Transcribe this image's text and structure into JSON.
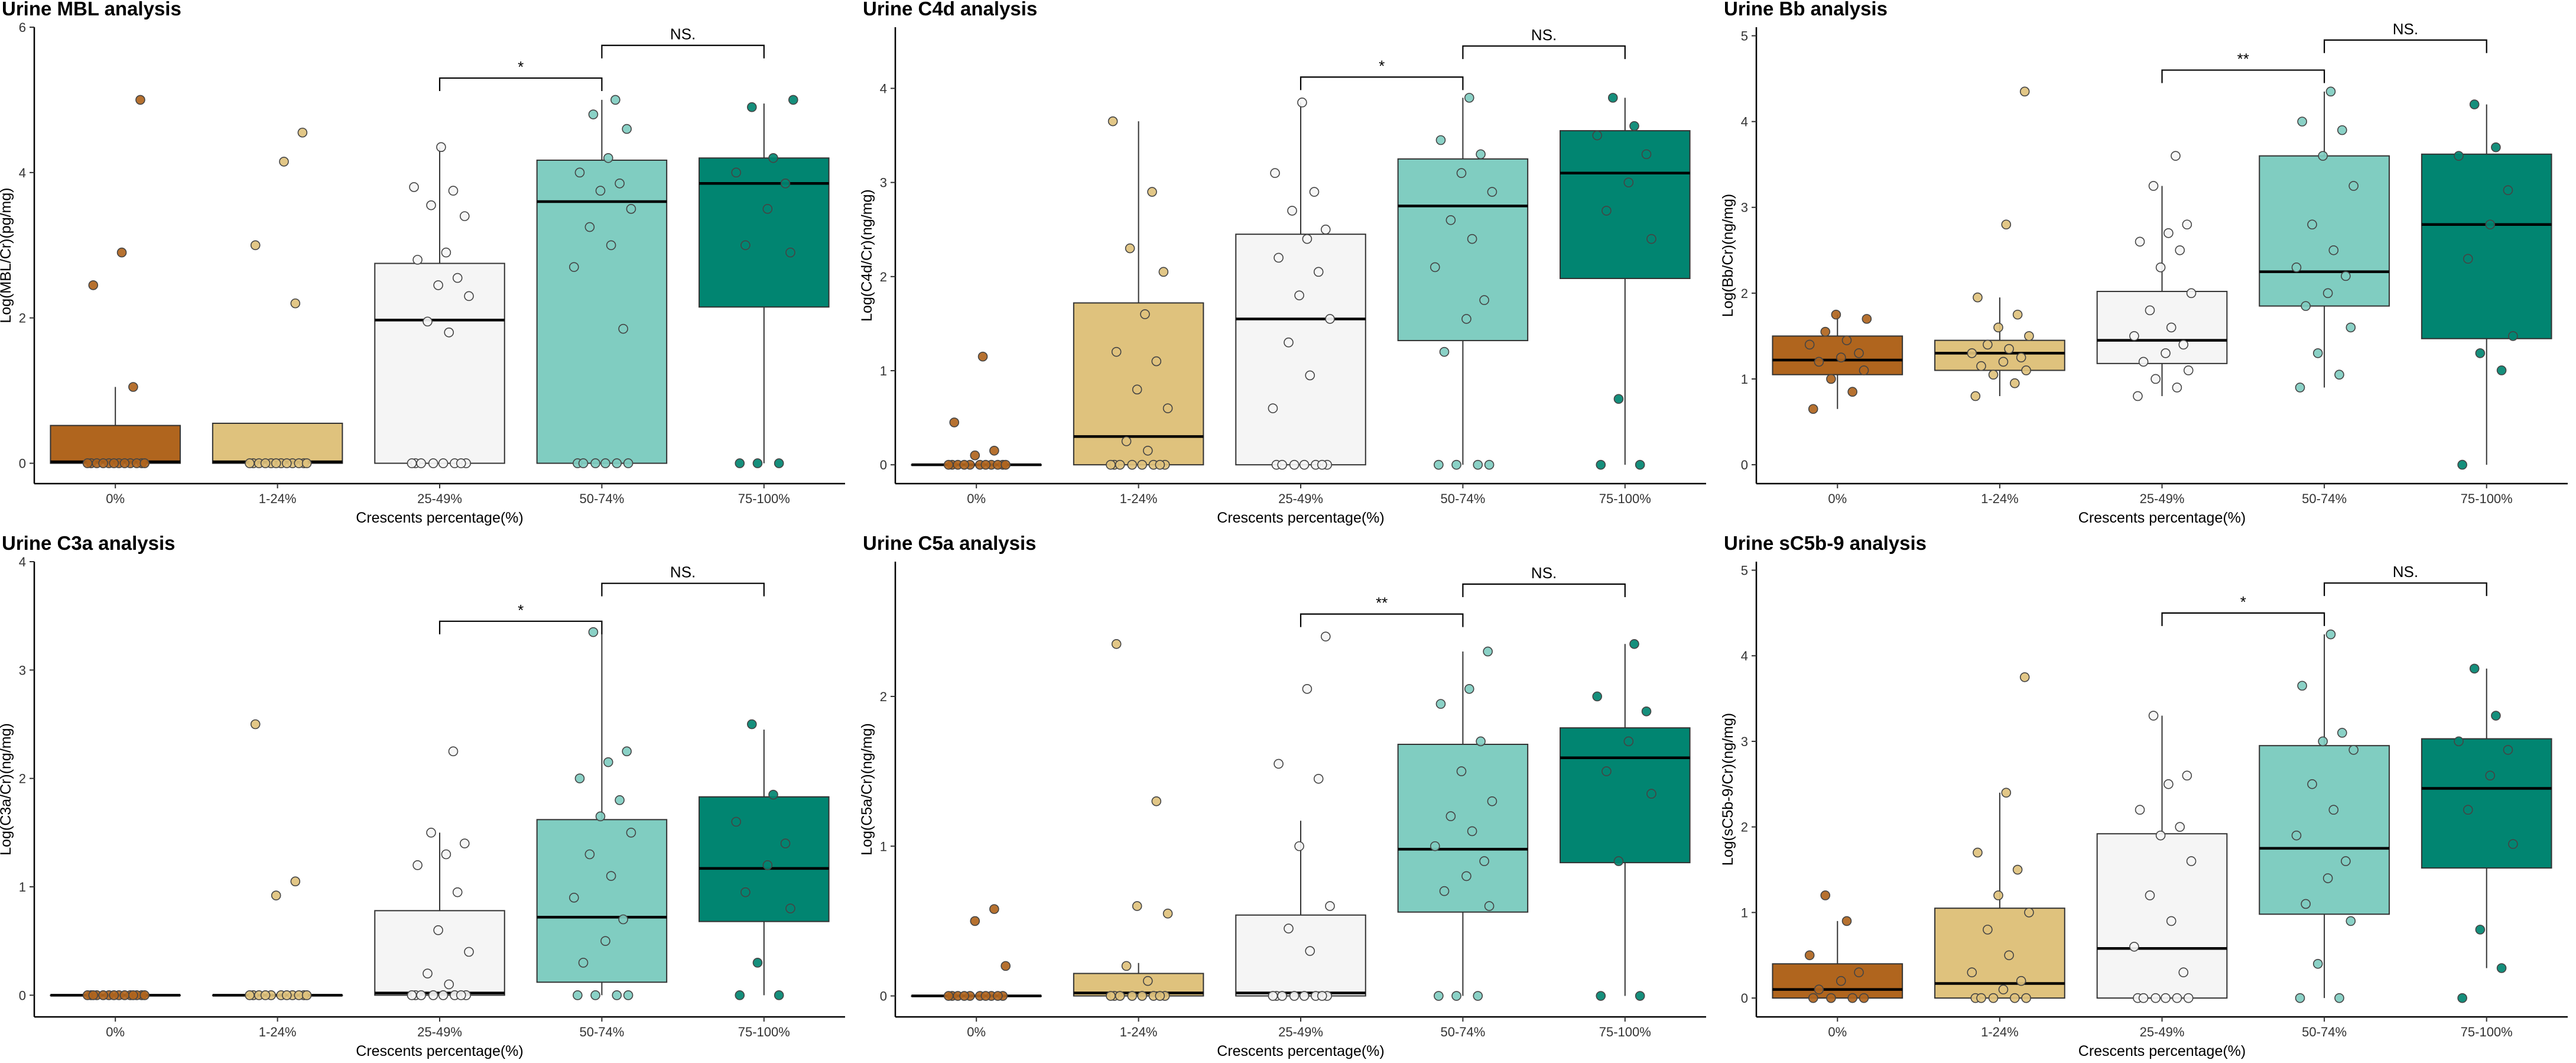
{
  "chart_data": [
    {
      "type": "box",
      "title": "Urine MBL analysis",
      "xlabel": "Crescents percentage(%)",
      "ylabel": "Log(MBL/Cr)(pg/mg)",
      "categories": [
        "0%",
        "1-24%",
        "25-49%",
        "50-74%",
        "75-100%"
      ],
      "colors": [
        "#B0651E",
        "#DFC27D",
        "#F5F5F5",
        "#80CDC1",
        "#018571"
      ],
      "ylim": [
        -0.28,
        6.0
      ],
      "yticks": [
        0,
        2,
        4,
        6
      ],
      "boxes": [
        {
          "q1": 0,
          "median": 0.02,
          "q3": 0.52,
          "wlow": 0,
          "whigh": 1.05
        },
        {
          "q1": 0,
          "median": 0.02,
          "q3": 0.55,
          "wlow": 0,
          "whigh": 0.55
        },
        {
          "q1": 0,
          "median": 1.97,
          "q3": 2.75,
          "wlow": 0,
          "whigh": 4.35
        },
        {
          "q1": 0,
          "median": 3.6,
          "q3": 4.17,
          "wlow": 0,
          "whigh": 5.0
        },
        {
          "q1": 2.15,
          "median": 3.85,
          "q3": 4.2,
          "wlow": 0,
          "whigh": 4.95
        }
      ],
      "points": [
        [
          0,
          0,
          0,
          0,
          0,
          0,
          0,
          0,
          0,
          0,
          0,
          0,
          1.05,
          2.45,
          2.9,
          5.0
        ],
        [
          0,
          0,
          0,
          0,
          0,
          0,
          0,
          0,
          0,
          0,
          0,
          0,
          2.2,
          3.0,
          4.15,
          4.55
        ],
        [
          0,
          0,
          0,
          0,
          0,
          0,
          0,
          0,
          1.8,
          1.95,
          2.3,
          2.45,
          2.55,
          2.8,
          2.9,
          3.4,
          3.55,
          3.75,
          3.8,
          4.35
        ],
        [
          0,
          0,
          0,
          0,
          0,
          0,
          1.85,
          2.7,
          3.0,
          3.25,
          3.5,
          3.75,
          3.85,
          4.0,
          4.2,
          4.6,
          4.8,
          5.0
        ],
        [
          0,
          0,
          0,
          2.9,
          3.0,
          3.5,
          3.85,
          4.0,
          4.2,
          4.9,
          5.0
        ]
      ],
      "brackets": [
        {
          "from": 2,
          "to": 3,
          "label": "*",
          "y": 5.3
        },
        {
          "from": 3,
          "to": 4,
          "label": "NS.",
          "y": 5.75
        }
      ]
    },
    {
      "type": "box",
      "title": "Urine C4d analysis",
      "xlabel": "Crescents percentage(%)",
      "ylabel": "Log(C4d/Cr)(ng/mg)",
      "categories": [
        "0%",
        "1-24%",
        "25-49%",
        "50-74%",
        "75-100%"
      ],
      "colors": [
        "#B0651E",
        "#DFC27D",
        "#F5F5F5",
        "#80CDC1",
        "#018571"
      ],
      "ylim": [
        -0.2,
        4.65
      ],
      "yticks": [
        0,
        1,
        2,
        3,
        4
      ],
      "boxes": [
        {
          "q1": 0,
          "median": 0,
          "q3": 0,
          "wlow": 0,
          "whigh": 0
        },
        {
          "q1": 0,
          "median": 0.3,
          "q3": 1.72,
          "wlow": 0,
          "whigh": 3.65
        },
        {
          "q1": 0,
          "median": 1.55,
          "q3": 2.45,
          "wlow": 0,
          "whigh": 3.85
        },
        {
          "q1": 1.32,
          "median": 2.75,
          "q3": 3.25,
          "wlow": 0,
          "whigh": 3.9
        },
        {
          "q1": 1.98,
          "median": 3.1,
          "q3": 3.55,
          "wlow": 0,
          "whigh": 3.9
        }
      ],
      "points": [
        [
          0,
          0,
          0,
          0,
          0,
          0,
          0,
          0,
          0,
          0,
          0,
          0.1,
          0.15,
          0.45,
          1.15
        ],
        [
          0,
          0,
          0,
          0,
          0,
          0,
          0,
          0,
          0.15,
          0.25,
          0.6,
          0.8,
          1.1,
          1.2,
          1.6,
          2.05,
          2.3,
          2.9,
          3.65
        ],
        [
          0,
          0,
          0,
          0,
          0,
          0,
          0,
          0.6,
          0.95,
          1.3,
          1.55,
          1.8,
          2.05,
          2.2,
          2.4,
          2.5,
          2.7,
          2.9,
          3.1,
          3.85
        ],
        [
          0,
          0,
          0,
          0,
          1.2,
          1.55,
          1.75,
          2.1,
          2.4,
          2.6,
          2.9,
          3.1,
          3.3,
          3.45,
          3.9
        ],
        [
          0,
          0,
          0.7,
          2.4,
          2.7,
          3.0,
          3.3,
          3.5,
          3.6,
          3.9
        ]
      ],
      "brackets": [
        {
          "from": 2,
          "to": 3,
          "label": "*",
          "y": 4.12
        },
        {
          "from": 3,
          "to": 4,
          "label": "NS.",
          "y": 4.45
        }
      ]
    },
    {
      "type": "box",
      "title": "Urine Bb analysis",
      "xlabel": "Crescents percentage(%)",
      "ylabel": "Log(Bb/Cr)(ng/mg)",
      "categories": [
        "0%",
        "1-24%",
        "25-49%",
        "50-74%",
        "75-100%"
      ],
      "colors": [
        "#B0651E",
        "#DFC27D",
        "#F5F5F5",
        "#80CDC1",
        "#018571"
      ],
      "ylim": [
        -0.22,
        5.1
      ],
      "yticks": [
        0,
        1,
        2,
        3,
        4,
        5
      ],
      "boxes": [
        {
          "q1": 1.05,
          "median": 1.22,
          "q3": 1.5,
          "wlow": 0.65,
          "whigh": 1.75
        },
        {
          "q1": 1.1,
          "median": 1.3,
          "q3": 1.45,
          "wlow": 0.8,
          "whigh": 1.95
        },
        {
          "q1": 1.18,
          "median": 1.45,
          "q3": 2.02,
          "wlow": 0.8,
          "whigh": 3.25
        },
        {
          "q1": 1.85,
          "median": 2.25,
          "q3": 3.6,
          "wlow": 0.9,
          "whigh": 4.35
        },
        {
          "q1": 1.47,
          "median": 2.8,
          "q3": 3.62,
          "wlow": 0,
          "whigh": 4.2
        }
      ],
      "points": [
        [
          0.65,
          0.85,
          1.0,
          1.1,
          1.2,
          1.25,
          1.3,
          1.4,
          1.45,
          1.55,
          1.7,
          1.75
        ],
        [
          0.8,
          0.95,
          1.05,
          1.1,
          1.15,
          1.2,
          1.25,
          1.3,
          1.35,
          1.4,
          1.5,
          1.6,
          1.75,
          1.95,
          2.8,
          4.35
        ],
        [
          0.8,
          0.9,
          1.0,
          1.1,
          1.2,
          1.3,
          1.4,
          1.5,
          1.6,
          1.8,
          2.0,
          2.3,
          2.5,
          2.6,
          2.7,
          2.8,
          3.25,
          3.6
        ],
        [
          0.9,
          1.05,
          1.3,
          1.6,
          1.85,
          2.0,
          2.2,
          2.3,
          2.5,
          2.8,
          3.25,
          3.6,
          3.9,
          4.0,
          4.35
        ],
        [
          0,
          1.1,
          1.3,
          1.5,
          2.4,
          2.8,
          3.2,
          3.6,
          3.7,
          4.2
        ]
      ],
      "brackets": [
        {
          "from": 2,
          "to": 3,
          "label": "**",
          "y": 4.6
        },
        {
          "from": 3,
          "to": 4,
          "label": "NS.",
          "y": 4.95
        }
      ]
    },
    {
      "type": "box",
      "title": "Urine C3a analysis",
      "xlabel": "Crescents percentage(%)",
      "ylabel": "Log(C3a/Cr)(ng/mg)",
      "categories": [
        "0%",
        "1-24%",
        "25-49%",
        "50-74%",
        "75-100%"
      ],
      "colors": [
        "#B0651E",
        "#DFC27D",
        "#F5F5F5",
        "#80CDC1",
        "#018571"
      ],
      "ylim": [
        -0.2,
        4.0
      ],
      "yticks": [
        0,
        1,
        2,
        3,
        4
      ],
      "boxes": [
        {
          "q1": 0,
          "median": 0,
          "q3": 0,
          "wlow": 0,
          "whigh": 0
        },
        {
          "q1": 0,
          "median": 0,
          "q3": 0,
          "wlow": 0,
          "whigh": 0
        },
        {
          "q1": 0,
          "median": 0.02,
          "q3": 0.78,
          "wlow": 0,
          "whigh": 1.5
        },
        {
          "q1": 0.12,
          "median": 0.72,
          "q3": 1.62,
          "wlow": 0,
          "whigh": 3.35
        },
        {
          "q1": 0.68,
          "median": 1.17,
          "q3": 1.83,
          "wlow": 0,
          "whigh": 2.45
        }
      ],
      "points": [
        [
          0,
          0,
          0,
          0,
          0,
          0,
          0,
          0,
          0,
          0,
          0,
          0,
          0,
          0
        ],
        [
          0,
          0,
          0,
          0,
          0,
          0,
          0,
          0,
          0,
          0,
          0,
          0.92,
          1.05,
          2.5
        ],
        [
          0,
          0,
          0,
          0,
          0,
          0,
          0,
          0,
          0.1,
          0.2,
          0.4,
          0.6,
          0.95,
          1.2,
          1.3,
          1.4,
          1.5,
          2.25
        ],
        [
          0,
          0,
          0,
          0,
          0.3,
          0.5,
          0.7,
          0.9,
          1.1,
          1.3,
          1.5,
          1.65,
          1.8,
          2.0,
          2.15,
          2.25,
          3.35
        ],
        [
          0,
          0,
          0.3,
          0.8,
          0.95,
          1.2,
          1.4,
          1.6,
          1.85,
          2.5
        ]
      ],
      "brackets": [
        {
          "from": 2,
          "to": 3,
          "label": "*",
          "y": 3.45
        },
        {
          "from": 3,
          "to": 4,
          "label": "NS.",
          "y": 3.8
        }
      ]
    },
    {
      "type": "box",
      "title": "Urine C5a analysis",
      "xlabel": "Crescents percentage(%)",
      "ylabel": "Log(C5a/Cr)(ng/mg)",
      "categories": [
        "0%",
        "1-24%",
        "25-49%",
        "50-74%",
        "75-100%"
      ],
      "colors": [
        "#B0651E",
        "#DFC27D",
        "#F5F5F5",
        "#80CDC1",
        "#018571"
      ],
      "ylim": [
        -0.14,
        2.9
      ],
      "yticks": [
        0,
        1,
        2
      ],
      "boxes": [
        {
          "q1": 0,
          "median": 0,
          "q3": 0,
          "wlow": 0,
          "whigh": 0
        },
        {
          "q1": 0,
          "median": 0.02,
          "q3": 0.15,
          "wlow": 0,
          "whigh": 0.22
        },
        {
          "q1": 0,
          "median": 0.02,
          "q3": 0.54,
          "wlow": 0,
          "whigh": 1.17
        },
        {
          "q1": 0.56,
          "median": 0.98,
          "q3": 1.68,
          "wlow": 0,
          "whigh": 2.3
        },
        {
          "q1": 0.89,
          "median": 1.59,
          "q3": 1.79,
          "wlow": 0,
          "whigh": 2.35
        }
      ],
      "points": [
        [
          0,
          0,
          0,
          0,
          0,
          0,
          0,
          0,
          0,
          0,
          0.2,
          0.5,
          0.58
        ],
        [
          0,
          0,
          0,
          0,
          0,
          0,
          0,
          0,
          0.1,
          0.2,
          0.55,
          0.6,
          1.3,
          2.35
        ],
        [
          0,
          0,
          0,
          0,
          0,
          0,
          0,
          0,
          0.3,
          0.45,
          0.6,
          1.0,
          1.45,
          1.55,
          2.05,
          2.4
        ],
        [
          0,
          0,
          0,
          0.6,
          0.7,
          0.8,
          0.9,
          1.0,
          1.1,
          1.2,
          1.3,
          1.5,
          1.7,
          1.95,
          2.05,
          2.3
        ],
        [
          0,
          0,
          0.9,
          1.35,
          1.5,
          1.7,
          1.9,
          2.0,
          2.35
        ]
      ],
      "brackets": [
        {
          "from": 2,
          "to": 3,
          "label": "**",
          "y": 2.55
        },
        {
          "from": 3,
          "to": 4,
          "label": "NS.",
          "y": 2.75
        }
      ]
    },
    {
      "type": "box",
      "title": "Urine sC5b-9 analysis",
      "xlabel": "Crescents percentage(%)",
      "ylabel": "Log(sC5b-9/Cr)(ng/mg)",
      "categories": [
        "0%",
        "1-24%",
        "25-49%",
        "50-74%",
        "75-100%"
      ],
      "colors": [
        "#B0651E",
        "#DFC27D",
        "#F5F5F5",
        "#80CDC1",
        "#018571"
      ],
      "ylim": [
        -0.22,
        5.1
      ],
      "yticks": [
        0,
        1,
        2,
        3,
        4,
        5
      ],
      "boxes": [
        {
          "q1": 0,
          "median": 0.1,
          "q3": 0.4,
          "wlow": 0,
          "whigh": 0.9
        },
        {
          "q1": 0,
          "median": 0.17,
          "q3": 1.05,
          "wlow": 0,
          "whigh": 2.4
        },
        {
          "q1": 0,
          "median": 0.58,
          "q3": 1.92,
          "wlow": 0,
          "whigh": 3.3
        },
        {
          "q1": 0.98,
          "median": 1.75,
          "q3": 2.95,
          "wlow": 0,
          "whigh": 4.25
        },
        {
          "q1": 1.52,
          "median": 2.45,
          "q3": 3.03,
          "wlow": 0.35,
          "whigh": 3.85
        }
      ],
      "points": [
        [
          0,
          0,
          0,
          0,
          0.1,
          0.2,
          0.3,
          0.5,
          0.9,
          1.2
        ],
        [
          0,
          0,
          0,
          0,
          0,
          0.1,
          0.2,
          0.3,
          0.5,
          0.8,
          1.0,
          1.2,
          1.5,
          1.7,
          2.4,
          3.75
        ],
        [
          0,
          0,
          0,
          0,
          0,
          0,
          0.3,
          0.6,
          0.9,
          1.2,
          1.6,
          1.9,
          2.0,
          2.2,
          2.5,
          2.6,
          3.3
        ],
        [
          0,
          0,
          0.4,
          0.9,
          1.1,
          1.4,
          1.6,
          1.9,
          2.2,
          2.5,
          2.9,
          3.0,
          3.1,
          3.65,
          4.25
        ],
        [
          0,
          0.35,
          0.8,
          1.8,
          2.2,
          2.6,
          2.9,
          3.0,
          3.3,
          3.85
        ]
      ],
      "brackets": [
        {
          "from": 2,
          "to": 3,
          "label": "*",
          "y": 4.5
        },
        {
          "from": 3,
          "to": 4,
          "label": "NS.",
          "y": 4.85
        }
      ]
    }
  ]
}
